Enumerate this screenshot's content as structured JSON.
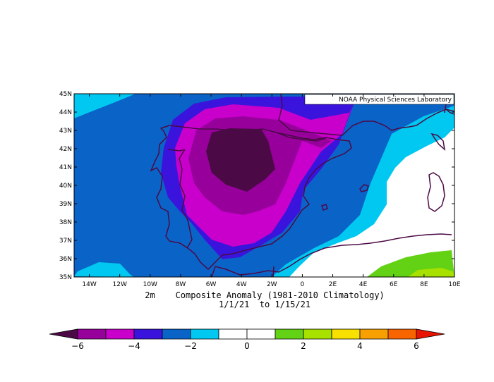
{
  "map": {
    "title": "",
    "credit": "NOAA Physical Sciences Laboratory",
    "caption_line1": "2m    Composite Anomaly (1981-2010 Climatology)",
    "caption_line2": "1/1/21  to 1/15/21",
    "lat_labels": [
      "45N",
      "44N",
      "43N",
      "42N",
      "41N",
      "40N",
      "39N",
      "38N",
      "37N",
      "36N",
      "35N"
    ],
    "lon_labels": [
      "14W",
      "12W",
      "10W",
      "8W",
      "6W",
      "4W",
      "2W",
      "0",
      "2E",
      "4E",
      "6E",
      "8E",
      "10E"
    ],
    "lat_range": [
      35,
      45
    ],
    "lon_range": [
      -15,
      10
    ],
    "region": "Iberian Peninsula and western Mediterranean",
    "field": "2m air temperature composite anomaly",
    "levels": [
      -6,
      -5,
      -4,
      -3,
      -2,
      -1,
      1,
      2,
      3,
      4,
      5,
      6
    ]
  },
  "colorbar": {
    "tick_labels": [
      "-6",
      "-4",
      "-2",
      "0",
      "2",
      "4",
      "6"
    ],
    "tick_values": [
      -6,
      -4,
      -2,
      0,
      2,
      4,
      6
    ],
    "min": -6,
    "max": 6,
    "colors": [
      "#4b0a46",
      "#98009c",
      "#c900cc",
      "#3a14dc",
      "#0a64c8",
      "#00c8f0",
      "#ffffff",
      "#ffffff",
      "#64d214",
      "#a8e000",
      "#f8e000",
      "#f8a000",
      "#f86400",
      "#e61400"
    ]
  },
  "colors": {
    "lt_-6": "#4b0a46",
    "-6_-5": "#98009c",
    "-5_-4": "#c900cc",
    "-4_-3": "#3a14dc",
    "-3_-2": "#0a64c8",
    "-2_-1": "#00c8f0",
    "-1_1": "#ffffff",
    "1_2": "#64d214",
    "2_3": "#a8e000",
    "coast": "#4b0a46"
  }
}
